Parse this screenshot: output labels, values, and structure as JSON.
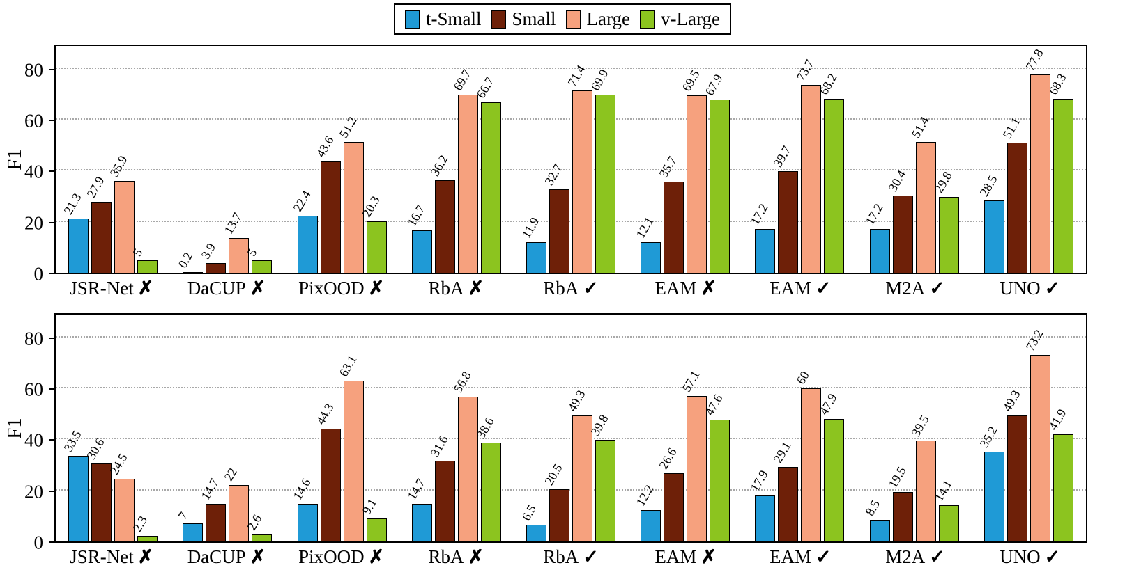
{
  "legend": {
    "items": [
      {
        "label": "t-Small",
        "color": "#1f9ad6"
      },
      {
        "label": "Small",
        "color": "#6e2008"
      },
      {
        "label": "Large",
        "color": "#f6a17e"
      },
      {
        "label": "v-Large",
        "color": "#8cc41f"
      }
    ]
  },
  "chart_data": [
    {
      "type": "bar",
      "title": "",
      "xlabel": "",
      "ylabel": "F1",
      "ylim": [
        0,
        90
      ],
      "yticks": [
        0,
        20,
        40,
        60,
        80
      ],
      "grid": "dotted horizontal",
      "legend_position": "top center",
      "categories": [
        {
          "name": "JSR-Net",
          "mark": "✗"
        },
        {
          "name": "DaCUP",
          "mark": "✗"
        },
        {
          "name": "PixOOD",
          "mark": "✗"
        },
        {
          "name": "RbA",
          "mark": "✗"
        },
        {
          "name": "RbA",
          "mark": "✓"
        },
        {
          "name": "EAM",
          "mark": "✗"
        },
        {
          "name": "EAM",
          "mark": "✓"
        },
        {
          "name": "M2A",
          "mark": "✓"
        },
        {
          "name": "UNO",
          "mark": "✓"
        }
      ],
      "series": [
        {
          "name": "t-Small",
          "values": [
            21.3,
            0.2,
            22.4,
            16.7,
            11.9,
            12.1,
            17.2,
            17.2,
            28.5
          ]
        },
        {
          "name": "Small",
          "values": [
            27.9,
            3.9,
            43.6,
            36.2,
            32.7,
            35.7,
            39.7,
            30.4,
            51.1
          ]
        },
        {
          "name": "Large",
          "values": [
            35.9,
            13.7,
            51.2,
            69.7,
            71.4,
            69.5,
            73.7,
            51.4,
            77.8
          ]
        },
        {
          "name": "v-Large",
          "values": [
            5,
            5,
            20.3,
            66.7,
            69.9,
            67.9,
            68.2,
            29.8,
            68.3
          ]
        }
      ]
    },
    {
      "type": "bar",
      "title": "",
      "xlabel": "",
      "ylabel": "F1",
      "ylim": [
        0,
        90
      ],
      "yticks": [
        0,
        20,
        40,
        60,
        80
      ],
      "grid": "dotted horizontal",
      "legend_position": "none",
      "categories": [
        {
          "name": "JSR-Net",
          "mark": "✗"
        },
        {
          "name": "DaCUP",
          "mark": "✗"
        },
        {
          "name": "PixOOD",
          "mark": "✗"
        },
        {
          "name": "RbA",
          "mark": "✗"
        },
        {
          "name": "RbA",
          "mark": "✓"
        },
        {
          "name": "EAM",
          "mark": "✗"
        },
        {
          "name": "EAM",
          "mark": "✓"
        },
        {
          "name": "M2A",
          "mark": "✓"
        },
        {
          "name": "UNO",
          "mark": "✓"
        }
      ],
      "series": [
        {
          "name": "t-Small",
          "values": [
            33.5,
            7,
            14.6,
            14.7,
            6.5,
            12.2,
            17.9,
            8.5,
            35.2
          ]
        },
        {
          "name": "Small",
          "values": [
            30.6,
            14.7,
            44.3,
            31.6,
            20.5,
            26.6,
            29.1,
            19.5,
            49.3
          ]
        },
        {
          "name": "Large",
          "values": [
            24.5,
            22,
            63.1,
            56.8,
            49.3,
            57.1,
            60,
            39.5,
            73.2
          ]
        },
        {
          "name": "v-Large",
          "values": [
            2.3,
            2.6,
            9.1,
            38.6,
            39.8,
            47.6,
            47.9,
            14.1,
            41.9
          ]
        }
      ]
    }
  ]
}
